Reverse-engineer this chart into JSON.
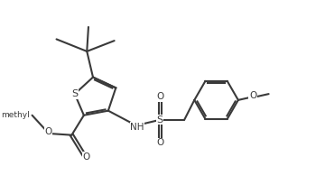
{
  "bg_color": "#ffffff",
  "line_color": "#3a3a3a",
  "line_width": 1.5,
  "font_size": 7.5,
  "fig_width": 3.6,
  "fig_height": 2.15,
  "dpi": 100,
  "xlim": [
    0,
    10
  ],
  "ylim": [
    0,
    6
  ]
}
